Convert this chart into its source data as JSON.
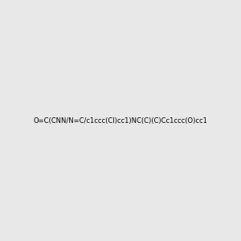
{
  "smiles": "O=C(CNN/N=C/c1ccc(Cl)cc1)NC(C)(C)Cc1ccc(O)cc1",
  "image_size": 300,
  "background_color": "#e8e8e8",
  "title": ""
}
